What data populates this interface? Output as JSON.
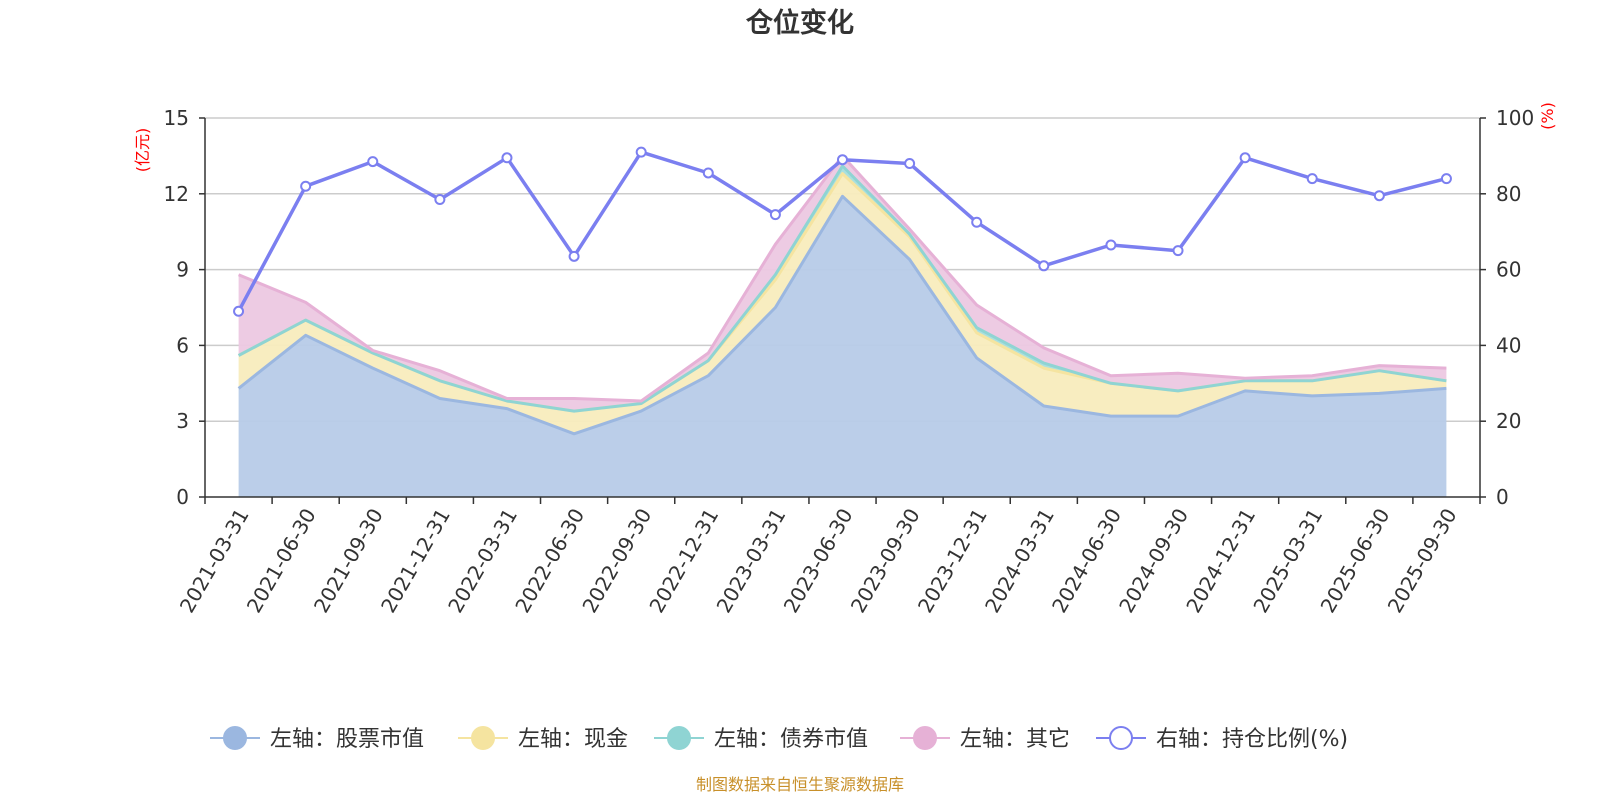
{
  "chart_data": {
    "type": "area",
    "title": "仓位变化",
    "left_axis": {
      "unit": "(亿元)",
      "ticks": [
        "0",
        "3",
        "6",
        "9",
        "12",
        "15"
      ],
      "ylim": [
        0,
        15
      ]
    },
    "right_axis": {
      "unit": "(%)",
      "ticks": [
        "0",
        "20",
        "40",
        "60",
        "80",
        "100"
      ],
      "ylim": [
        0,
        100
      ]
    },
    "categories": [
      "2021-03-31",
      "2021-06-30",
      "2021-09-30",
      "2021-12-31",
      "2022-03-31",
      "2022-06-30",
      "2022-09-30",
      "2022-12-31",
      "2023-03-31",
      "2023-06-30",
      "2023-09-30",
      "2023-12-31",
      "2024-03-31",
      "2024-06-30",
      "2024-09-30",
      "2024-12-31",
      "2025-03-31",
      "2025-06-30",
      "2025-09-30"
    ],
    "stacked_series": [
      {
        "name": "左轴：股票市值",
        "axis": "left",
        "color": "#9bb7e0",
        "fill": "#b7cbe8",
        "values": [
          4.3,
          6.4,
          5.1,
          3.9,
          3.5,
          2.5,
          3.4,
          4.8,
          7.5,
          11.9,
          9.4,
          5.5,
          3.6,
          3.2,
          3.2,
          4.2,
          4.0,
          4.1,
          4.3
        ]
      },
      {
        "name": "左轴：现金",
        "axis": "left",
        "color": "#f5e4a0",
        "fill": "#f8ecbd",
        "values": [
          1.3,
          0.6,
          0.6,
          0.7,
          0.3,
          0.9,
          0.3,
          0.6,
          1.1,
          0.9,
          0.9,
          1.0,
          1.5,
          1.3,
          1.0,
          0.4,
          0.6,
          0.9,
          0.3
        ]
      },
      {
        "name": "左轴：债券市值",
        "axis": "left",
        "color": "#8fd4d3",
        "fill": "#a7dedd",
        "values": [
          0,
          0,
          0,
          0,
          0,
          0,
          0,
          0,
          0.2,
          0.3,
          0.1,
          0.2,
          0.2,
          0,
          0,
          0,
          0,
          0,
          0
        ]
      },
      {
        "name": "左轴：其它",
        "axis": "left",
        "color": "#e6b1d6",
        "fill": "#ecc8e2",
        "values": [
          3.2,
          0.7,
          0.1,
          0.4,
          0.1,
          0.5,
          0.1,
          0.3,
          1.2,
          0.4,
          0.2,
          0.9,
          0.6,
          0.3,
          0.7,
          0.1,
          0.2,
          0.2,
          0.5
        ]
      }
    ],
    "line_series": {
      "name": "右轴：持仓比例(%)",
      "axis": "right",
      "color": "#7b7ff0",
      "values": [
        49,
        82,
        88.5,
        78.5,
        89.5,
        63.5,
        91,
        85.5,
        74.5,
        89,
        88,
        72.5,
        61,
        66.5,
        65,
        89.5,
        84,
        79.5,
        84
      ]
    },
    "grid": true,
    "legend_position": "bottom"
  },
  "footer": {
    "source": "制图数据来自恒生聚源数据库"
  }
}
